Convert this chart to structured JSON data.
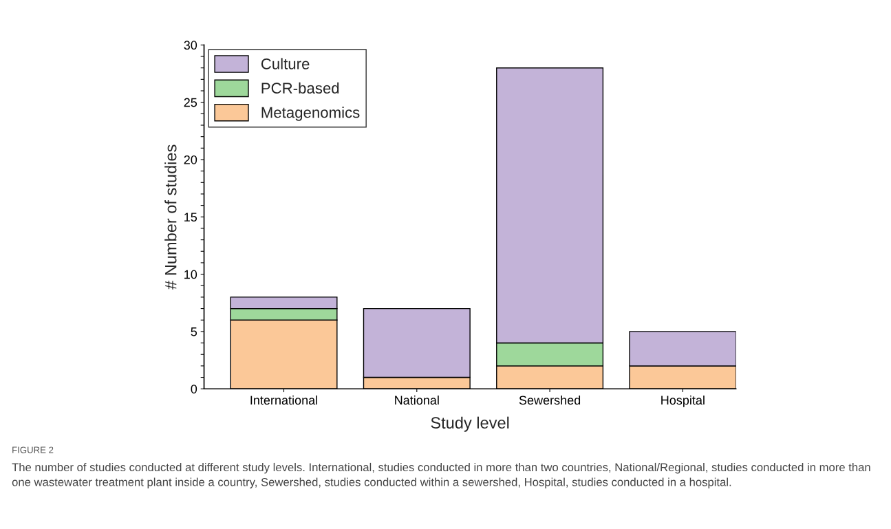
{
  "chart_data": {
    "type": "bar",
    "stacked": true,
    "xlabel": "Study level",
    "ylabel": "# Number of studies",
    "categories": [
      "International",
      "National",
      "Sewershed",
      "Hospital"
    ],
    "series": [
      {
        "name": "Metagenomics",
        "color": "#fbc898",
        "values": [
          6,
          1,
          2,
          2
        ]
      },
      {
        "name": "PCR-based",
        "color": "#9ed89b",
        "values": [
          1,
          0,
          2,
          0
        ]
      },
      {
        "name": "Culture",
        "color": "#c3b3d8",
        "values": [
          1,
          6,
          24,
          3
        ]
      }
    ],
    "ylim": [
      0,
      30
    ],
    "yticks": [
      0,
      {
        "value": 1,
        "label": null
      },
      {
        "value": 2,
        "label": null
      },
      {
        "value": 3,
        "label": null
      },
      {
        "value": 4,
        "label": null
      },
      5,
      {
        "value": 6,
        "label": null
      },
      {
        "value": 7,
        "label": null
      },
      {
        "value": 8,
        "label": null
      },
      {
        "value": 9,
        "label": null
      },
      10,
      {
        "value": 11,
        "label": null
      },
      {
        "value": 12,
        "label": null
      },
      {
        "value": 13,
        "label": null
      },
      {
        "value": 14,
        "label": null
      },
      15,
      {
        "value": 16,
        "label": null
      },
      {
        "value": 17,
        "label": null
      },
      {
        "value": 18,
        "label": null
      },
      {
        "value": 19,
        "label": null
      },
      20,
      {
        "value": 21,
        "label": null
      },
      {
        "value": 22,
        "label": null
      },
      {
        "value": 23,
        "label": null
      },
      {
        "value": 24,
        "label": null
      },
      25,
      {
        "value": 26,
        "label": null
      },
      {
        "value": 27,
        "label": null
      },
      {
        "value": 28,
        "label": null
      },
      {
        "value": 29,
        "label": null
      },
      30
    ],
    "grid": false,
    "legend": "top left",
    "annotations": [
      "FIGURE 2",
      "The number of studies conducted at different study levels. International, studies conducted in more than two countries, National/Regional, studies conducted in more than one wastewater treatment plant inside a country, Sewershed, studies conducted within a sewershed, Hospital, studies conducted in a hospital."
    ]
  }
}
